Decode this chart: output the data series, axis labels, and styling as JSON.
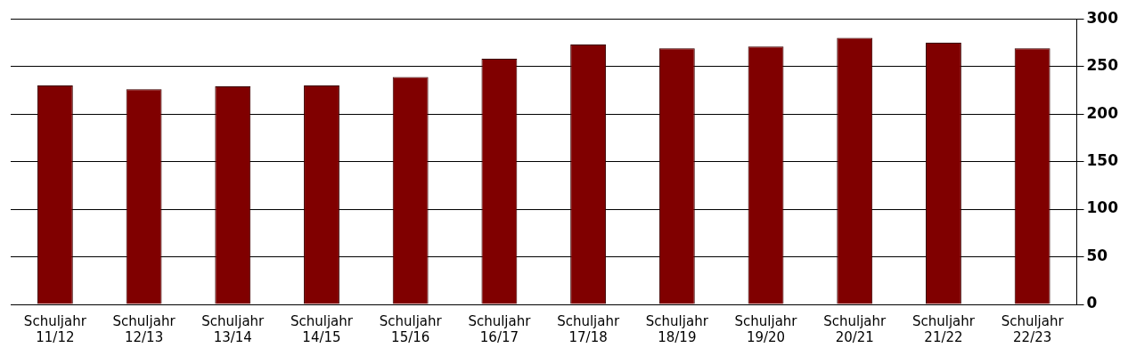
{
  "chart_data": {
    "type": "bar",
    "categories": [
      "Schuljahr 11/12",
      "Schuljahr 12/13",
      "Schuljahr 13/14",
      "Schuljahr 14/15",
      "Schuljahr 15/16",
      "Schuljahr 16/17",
      "Schuljahr 17/18",
      "Schuljahr 18/19",
      "Schuljahr 19/20",
      "Schuljahr 20/21",
      "Schuljahr 21/22",
      "Schuljahr 22/23"
    ],
    "values": [
      230,
      226,
      229,
      230,
      239,
      258,
      273,
      269,
      271,
      280,
      275,
      269
    ],
    "color": "#800000",
    "ylim": [
      0,
      300
    ],
    "yticks": [
      0,
      50,
      100,
      150,
      200,
      250,
      300
    ],
    "grid": "y",
    "legend": false
  }
}
